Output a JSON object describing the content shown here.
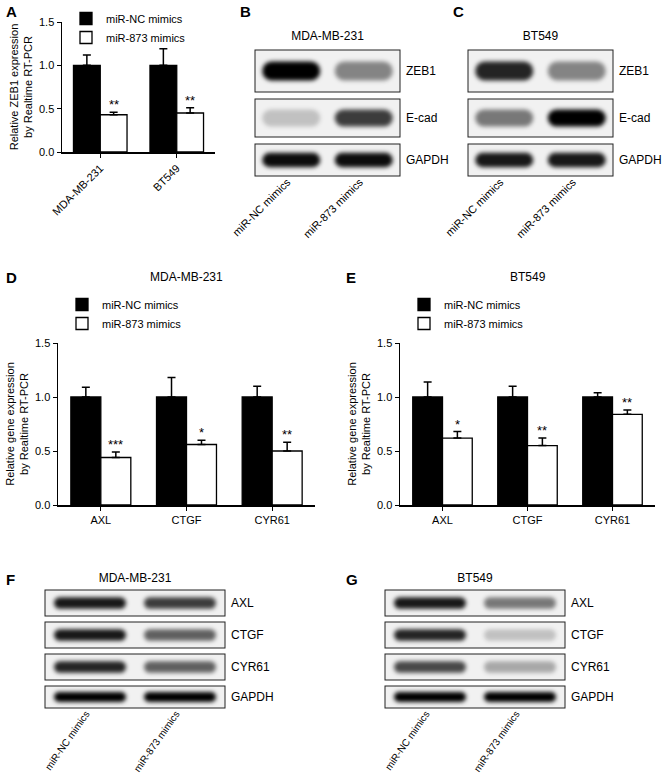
{
  "chart_data": [
    {
      "panel": "A",
      "type": "bar",
      "ylabel": [
        "Relative ZEB1 expression",
        "by Realtime RT-PCR"
      ],
      "categories": [
        "MDA-MB-231",
        "BT549"
      ],
      "series": [
        {
          "name": "miR-NC mimics",
          "color": "#000000",
          "values": [
            1.0,
            1.0
          ],
          "errors": [
            0.12,
            0.19
          ]
        },
        {
          "name": "miR-873 mimics",
          "color": "#ffffff",
          "values": [
            0.43,
            0.45
          ],
          "errors": [
            0.03,
            0.06
          ],
          "significance": [
            "**",
            "**"
          ]
        }
      ],
      "ylim": [
        0,
        1.5
      ],
      "yticks": [
        {
          "value": 0,
          "label": "0.0"
        },
        {
          "value": 0.5,
          "label": "0.5"
        },
        {
          "value": 1,
          "label": "1.0"
        },
        {
          "value": 1.5,
          "label": "1.5"
        }
      ],
      "grid": false,
      "legend": "top-left"
    },
    {
      "panel": "D",
      "type": "bar",
      "title": "MDA-MB-231",
      "ylabel": [
        "Relative gene expression",
        "by Realtime RT-PCR"
      ],
      "categories": [
        "AXL",
        "CTGF",
        "CYR61"
      ],
      "series": [
        {
          "name": "miR-NC mimics",
          "color": "#000000",
          "values": [
            1.0,
            1.0,
            1.0
          ],
          "errors": [
            0.09,
            0.18,
            0.1
          ]
        },
        {
          "name": "miR-873 mimics",
          "color": "#ffffff",
          "values": [
            0.44,
            0.56,
            0.5
          ],
          "errors": [
            0.05,
            0.04,
            0.08
          ],
          "significance": [
            "***",
            "*",
            "**"
          ]
        }
      ],
      "ylim": [
        0,
        1.5
      ],
      "yticks": [
        {
          "value": 0,
          "label": "0.0"
        },
        {
          "value": 0.5,
          "label": "0.5"
        },
        {
          "value": 1,
          "label": "1.0"
        },
        {
          "value": 1.5,
          "label": "1.5"
        }
      ],
      "grid": false,
      "legend": "top-left"
    },
    {
      "panel": "E",
      "type": "bar",
      "title": "BT549",
      "ylabel": [
        "Relative gene expression",
        "by Realtime RT-PCR"
      ],
      "categories": [
        "AXL",
        "CTGF",
        "CYR61"
      ],
      "series": [
        {
          "name": "miR-NC mimics",
          "color": "#000000",
          "values": [
            1.0,
            1.0,
            1.0
          ],
          "errors": [
            0.14,
            0.1,
            0.04
          ]
        },
        {
          "name": "miR-873 mimics",
          "color": "#ffffff",
          "values": [
            0.62,
            0.55,
            0.84
          ],
          "errors": [
            0.06,
            0.07,
            0.04
          ],
          "significance": [
            "*",
            "**",
            "**"
          ]
        }
      ],
      "ylim": [
        0,
        1.5
      ],
      "yticks": [
        {
          "value": 0,
          "label": "0.0"
        },
        {
          "value": 0.5,
          "label": "0.5"
        },
        {
          "value": 1,
          "label": "1.0"
        },
        {
          "value": 1.5,
          "label": "1.5"
        }
      ],
      "grid": false,
      "legend": "top-left"
    }
  ],
  "blots": [
    {
      "panel": "B",
      "title": "MDA-MB-231",
      "lanes": [
        "miR-NC mimics",
        "miR-873 mimics"
      ],
      "rows": [
        {
          "label": "ZEB1",
          "intensity": [
            1.0,
            0.45
          ]
        },
        {
          "label": "E-cad",
          "intensity": [
            0.2,
            0.75
          ]
        },
        {
          "label": "GAPDH",
          "intensity": [
            0.95,
            0.95
          ]
        }
      ]
    },
    {
      "panel": "C",
      "title": "BT549",
      "lanes": [
        "miR-NC mimics",
        "miR-873 mimics"
      ],
      "rows": [
        {
          "label": "ZEB1",
          "intensity": [
            0.85,
            0.45
          ]
        },
        {
          "label": "E-cad",
          "intensity": [
            0.5,
            1.0
          ]
        },
        {
          "label": "GAPDH",
          "intensity": [
            0.9,
            0.9
          ]
        }
      ]
    },
    {
      "panel": "F",
      "title": "MDA-MB-231",
      "lanes": [
        "miR-NC mimics",
        "miR-873 mimics"
      ],
      "rows": [
        {
          "label": "AXL",
          "intensity": [
            0.9,
            0.75
          ]
        },
        {
          "label": "CTGF",
          "intensity": [
            0.9,
            0.6
          ]
        },
        {
          "label": "CYR61",
          "intensity": [
            0.85,
            0.6
          ]
        },
        {
          "label": "GAPDH",
          "intensity": [
            1.0,
            1.0
          ]
        }
      ]
    },
    {
      "panel": "G",
      "title": "BT549",
      "lanes": [
        "miR-NC mimics",
        "miR-873 mimics"
      ],
      "rows": [
        {
          "label": "AXL",
          "intensity": [
            0.9,
            0.5
          ]
        },
        {
          "label": "CTGF",
          "intensity": [
            0.85,
            0.2
          ]
        },
        {
          "label": "CYR61",
          "intensity": [
            0.7,
            0.3
          ]
        },
        {
          "label": "GAPDH",
          "intensity": [
            1.0,
            1.0
          ]
        }
      ]
    }
  ]
}
